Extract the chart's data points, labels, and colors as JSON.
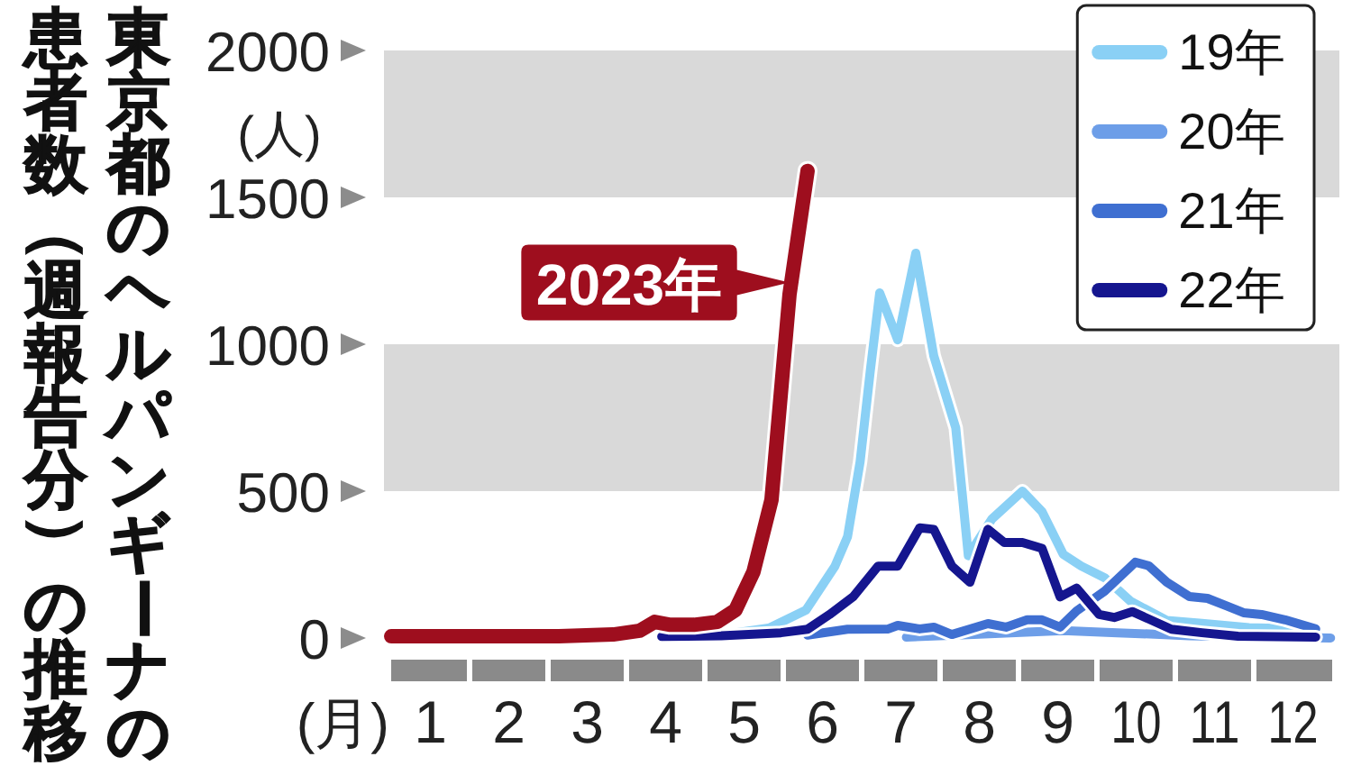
{
  "chart_data": {
    "type": "line",
    "title": "東京都のヘルパンギーナの",
    "subtitle": "患者数（週報告分）の推移",
    "xlabel": "(月)",
    "ylabel": "(人)",
    "xlim": [
      1,
      13
    ],
    "xticks": [
      {
        "value": 1.5,
        "label": "1"
      },
      {
        "value": 2,
        "label": null
      },
      {
        "value": 2.5,
        "label": "2"
      },
      {
        "value": 3,
        "label": null
      },
      {
        "value": 3.5,
        "label": "3"
      },
      {
        "value": 4,
        "label": null
      },
      {
        "value": 4.5,
        "label": "4"
      },
      {
        "value": 5,
        "label": null
      },
      {
        "value": 5.5,
        "label": "5"
      },
      {
        "value": 6,
        "label": null
      },
      {
        "value": 6.5,
        "label": "6"
      },
      {
        "value": 7,
        "label": null
      },
      {
        "value": 7.5,
        "label": "7"
      },
      {
        "value": 8,
        "label": null
      },
      {
        "value": 8.5,
        "label": "8"
      },
      {
        "value": 9,
        "label": null
      },
      {
        "value": 9.5,
        "label": "9"
      },
      {
        "value": 10,
        "label": null
      },
      {
        "value": 10.5,
        "label": "10"
      },
      {
        "value": 11,
        "label": null
      },
      {
        "value": 11.5,
        "label": "11"
      },
      {
        "value": 12,
        "label": null
      },
      {
        "value": 12.5,
        "label": "12"
      }
    ],
    "ylim": [
      0,
      2000
    ],
    "yticks": [
      0,
      500,
      1000,
      1500,
      2000
    ],
    "legend": "top right",
    "bands": [
      {
        "axis": "y",
        "from": 500,
        "to": 1000,
        "color": "#d9d9d9"
      },
      {
        "axis": "y",
        "from": 1500,
        "to": 2000,
        "color": "#d9d9d9"
      }
    ],
    "series": [
      {
        "name": "19年",
        "color": "#8ad0f5",
        "x": [
          5.32,
          5.83,
          6.29,
          6.66,
          6.82,
          6.98,
          7.11,
          7.23,
          7.46,
          7.69,
          7.92,
          8.2,
          8.36,
          8.66,
          9.05,
          9.3,
          9.57,
          9.8,
          10.1,
          10.43,
          10.89,
          11.34,
          11.94,
          12.72
        ],
        "values": [
          15,
          35,
          95,
          245,
          345,
          600,
          910,
          1175,
          1015,
          1310,
          960,
          715,
          280,
          405,
          500,
          430,
          285,
          245,
          205,
          125,
          60,
          50,
          35,
          30
        ]
      },
      {
        "name": "20年",
        "color": "#6d9ee8",
        "x": [
          7.57,
          8.43,
          9.57,
          10.26,
          11.18,
          12.1,
          12.98
        ],
        "values": [
          3,
          12,
          25,
          18,
          8,
          3,
          0
        ]
      },
      {
        "name": "21年",
        "color": "#3f6fd1",
        "x": [
          6.31,
          6.82,
          7.34,
          7.46,
          7.74,
          7.92,
          8.15,
          8.61,
          8.84,
          9.11,
          9.3,
          9.53,
          9.74,
          10.1,
          10.49,
          10.66,
          10.89,
          11.18,
          11.41,
          11.64,
          11.87,
          12.1,
          12.4,
          12.79
        ],
        "values": [
          10,
          30,
          31,
          43,
          31,
          37,
          12,
          49,
          37,
          62,
          62,
          37,
          92,
          160,
          258,
          246,
          190,
          141,
          135,
          111,
          86,
          80,
          62,
          31
        ]
      },
      {
        "name": "22年",
        "color": "#15168f",
        "x": [
          4.45,
          5.21,
          5.97,
          6.31,
          6.59,
          6.89,
          7.21,
          7.46,
          7.74,
          7.92,
          8.15,
          8.38,
          8.61,
          8.82,
          9.05,
          9.3,
          9.53,
          9.74,
          10.03,
          10.22,
          10.45,
          10.95,
          11.34,
          11.8,
          12.79
        ],
        "values": [
          5,
          8,
          18,
          30,
          80,
          140,
          245,
          245,
          375,
          370,
          245,
          190,
          370,
          325,
          325,
          305,
          140,
          170,
          80,
          70,
          90,
          30,
          18,
          6,
          3
        ]
      },
      {
        "color": "#9e0e1e",
        "x": [
          1,
          1.76,
          2.45,
          3.14,
          3.83,
          4.17,
          4.36,
          4.56,
          4.86,
          5.16,
          5.39,
          5.62,
          5.85,
          6.08,
          6.31
        ],
        "values": [
          6,
          6,
          6,
          6,
          12,
          25,
          55,
          45,
          45,
          55,
          95,
          225,
          470,
          1170,
          1590
        ]
      }
    ],
    "annotations": [
      {
        "text": "2023年",
        "x": 6.1,
        "y": 1210
      }
    ]
  }
}
